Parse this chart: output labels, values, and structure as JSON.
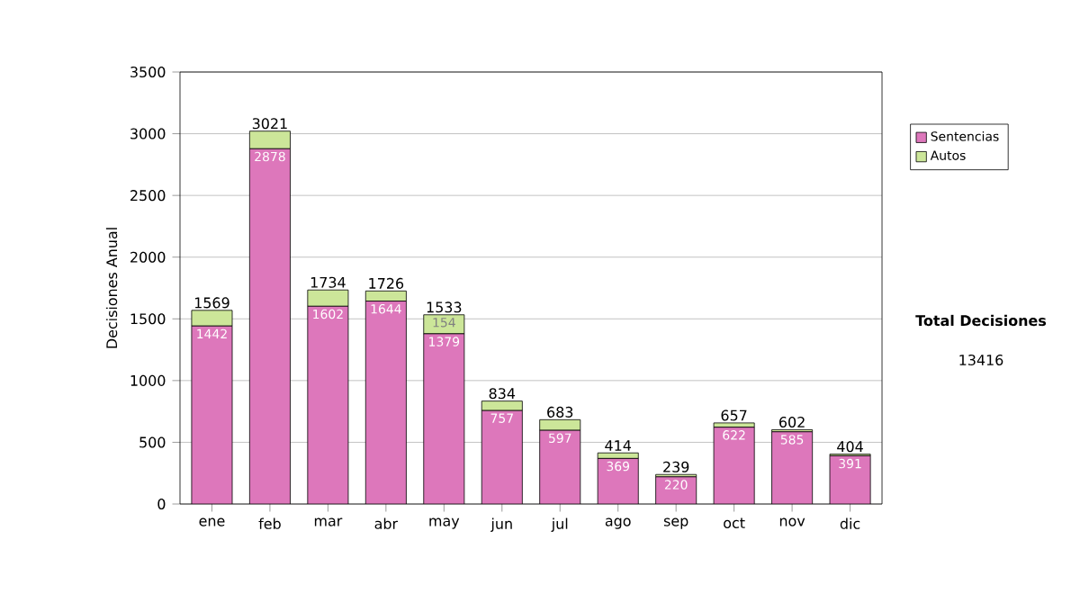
{
  "chart_data": {
    "type": "bar",
    "stacked": true,
    "ylabel": "Decisiones Anual",
    "categories": [
      "ene",
      "feb",
      "mar",
      "abr",
      "may",
      "jun",
      "jul",
      "ago",
      "sep",
      "oct",
      "nov",
      "dic"
    ],
    "series": [
      {
        "name": "Sentencias",
        "color": "#dd77bb",
        "values": [
          1442,
          2878,
          1602,
          1644,
          1379,
          757,
          597,
          369,
          220,
          622,
          585,
          391
        ],
        "value_labels": [
          "1442",
          "2878",
          "1602",
          "1644",
          "1379",
          "757",
          "597",
          "369",
          "220",
          "622",
          "585",
          "391"
        ]
      },
      {
        "name": "Autos",
        "color": "#cce699",
        "values": [
          127,
          143,
          132,
          82,
          154,
          77,
          86,
          45,
          19,
          35,
          17,
          13
        ],
        "value_labels": [
          null,
          null,
          null,
          null,
          "154",
          null,
          null,
          null,
          null,
          null,
          null,
          null
        ]
      }
    ],
    "totals": [
      "1569",
      "3021",
      "1734",
      "1726",
      "1533",
      "834",
      "683",
      "414",
      "239",
      "657",
      "602",
      "404"
    ],
    "ylim": [
      0,
      3500
    ],
    "yticks": [
      0,
      500,
      1000,
      1500,
      2000,
      2500,
      3000,
      3500
    ],
    "grid": "y",
    "legend": "right",
    "annotations": [
      "Total Decisiones",
      "13416"
    ]
  }
}
